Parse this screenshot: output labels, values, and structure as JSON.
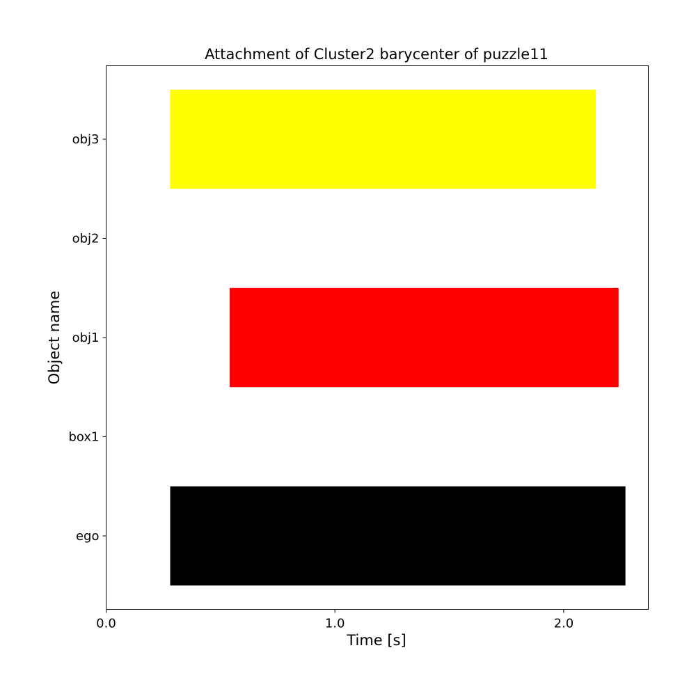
{
  "chart_data": {
    "type": "bar",
    "orientation": "horizontal",
    "title": "Attachment of Cluster2 barycenter of puzzle11",
    "xlabel": "Time [s]",
    "ylabel": "Object name",
    "xlim": [
      0.0,
      2.37
    ],
    "xticks": [
      {
        "value": 0.0,
        "label": "0.0"
      },
      {
        "value": 1.0,
        "label": "1.0"
      },
      {
        "value": 2.0,
        "label": "2.0"
      }
    ],
    "categories": [
      "ego",
      "box1",
      "obj1",
      "obj2",
      "obj3"
    ],
    "bars": [
      {
        "category": "ego",
        "start": 0.28,
        "end": 2.27,
        "color": "#000000"
      },
      {
        "category": "obj1",
        "start": 0.54,
        "end": 2.24,
        "color": "#ff0000"
      },
      {
        "category": "obj3",
        "start": 0.28,
        "end": 2.14,
        "color": "#ffff00"
      }
    ],
    "grid": false,
    "legend": "none"
  }
}
